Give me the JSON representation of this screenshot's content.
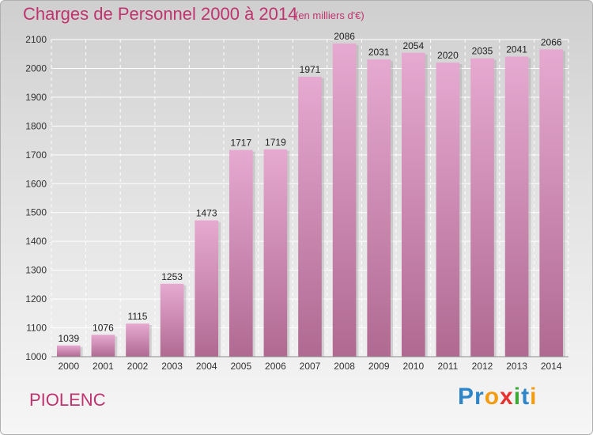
{
  "header": {
    "title": "Charges de Personnel 2000 à 2014",
    "subtitle": "(en milliers d'€)"
  },
  "footer": {
    "commune": "PIOLENC",
    "logo_letters": [
      "P",
      "r",
      "o",
      "x",
      "i",
      "t",
      "i"
    ],
    "logo_colors": [
      "#2e86c8",
      "#2e86c8",
      "#f39c12",
      "#e8312f",
      "#3aaa35",
      "#2e86c8",
      "#f39c12"
    ]
  },
  "chart_data": {
    "type": "bar",
    "title": "Charges de Personnel 2000 à 2014",
    "subtitle": "(en milliers d'€)",
    "categories": [
      "2000",
      "2001",
      "2002",
      "2003",
      "2004",
      "2005",
      "2006",
      "2007",
      "2008",
      "2009",
      "2010",
      "2011",
      "2012",
      "2013",
      "2014"
    ],
    "values": [
      1039,
      1076,
      1115,
      1253,
      1473,
      1717,
      1719,
      1971,
      2086,
      2031,
      2054,
      2020,
      2035,
      2041,
      2066
    ],
    "ylim": [
      1000,
      2100
    ],
    "yticks": [
      1000,
      1100,
      1200,
      1300,
      1400,
      1500,
      1600,
      1700,
      1800,
      1900,
      2000,
      2100
    ],
    "grid": true,
    "bar_color_top": "#e6a9d0",
    "bar_color_bottom": "#b06a92"
  }
}
